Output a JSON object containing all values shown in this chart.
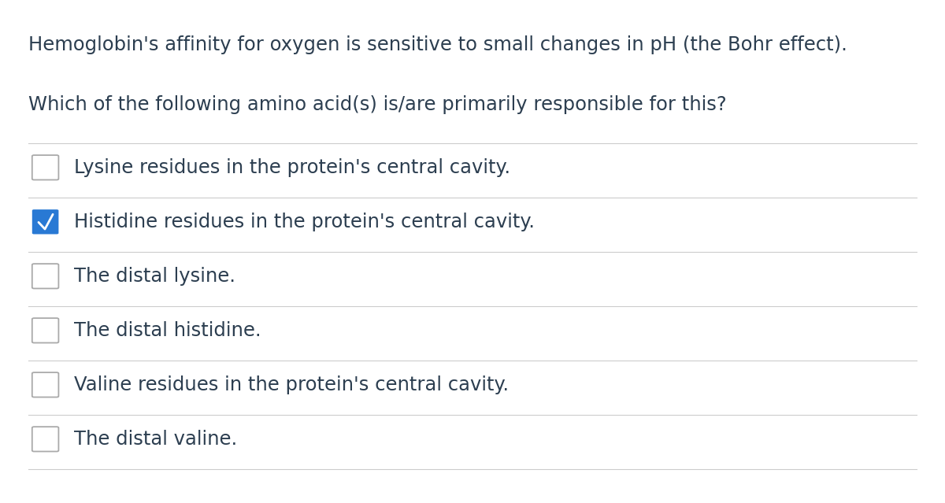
{
  "question_line1": "Hemoglobin's affinity for oxygen is sensitive to small changes in pH (the Bohr effect).",
  "question_line2": "Which of the following amino acid(s) is/are primarily responsible for this?",
  "options": [
    "Lysine residues in the protein's central cavity.",
    "Histidine residues in the protein's central cavity.",
    "The distal lysine.",
    "The distal histidine.",
    "Valine residues in the protein's central cavity.",
    "The distal valine."
  ],
  "checked": [
    false,
    true,
    false,
    false,
    false,
    false
  ],
  "background_color": "#ffffff",
  "text_color": "#2c3e50",
  "question_fontsize": 17.5,
  "option_fontsize": 17.5,
  "checkbox_checked_color": "#2979d4",
  "checkbox_border_color": "#aaaaaa",
  "divider_color": "#cccccc",
  "checkmark_color": "#ffffff",
  "fig_width": 12.0,
  "fig_height": 6.39,
  "dpi": 100
}
